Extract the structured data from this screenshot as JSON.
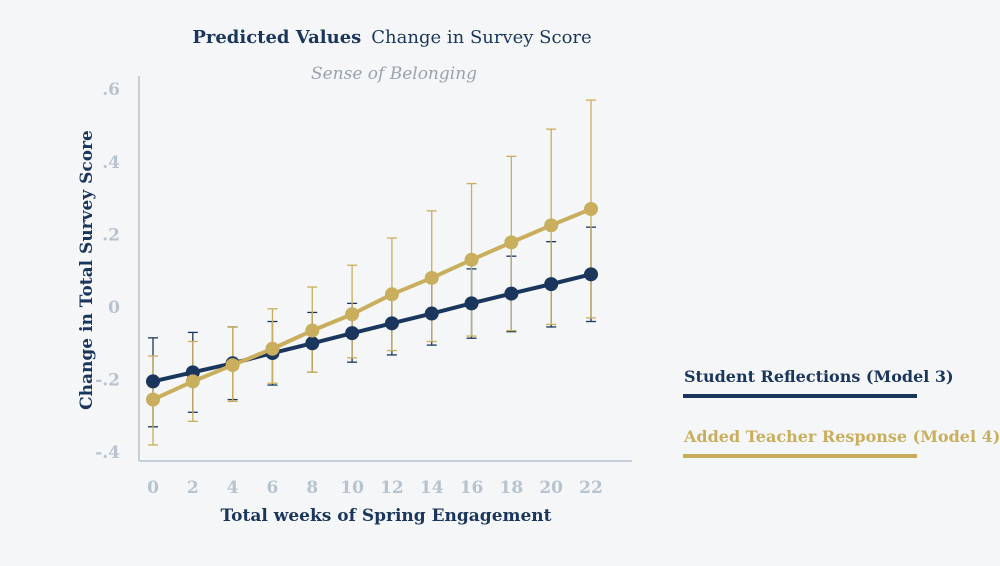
{
  "chart_data": {
    "type": "line",
    "title_bold": "Predicted Values",
    "title_regular": "Change in Survey Score",
    "subtitle": "Sense of Belonging",
    "xlabel": "Total weeks of Spring Engagement",
    "ylabel": "Change in Total Survey Score",
    "x": [
      0,
      2,
      4,
      6,
      8,
      10,
      12,
      14,
      16,
      18,
      20,
      22
    ],
    "x_tick_labels": [
      "0",
      "2",
      "4",
      "6",
      "8",
      "10",
      "12",
      "14",
      "16",
      "18",
      "20",
      "22"
    ],
    "y_ticks": [
      -0.4,
      -0.2,
      0,
      0.2,
      0.4,
      0.6
    ],
    "y_tick_labels": [
      "-.4",
      "-.2",
      "0",
      ".2",
      ".4",
      ".6"
    ],
    "ylim": [
      -0.43,
      0.64
    ],
    "series": [
      {
        "name": "Student Reflections (Model 3)",
        "color": "#1b365d",
        "values": [
          -0.205,
          -0.18,
          -0.155,
          -0.127,
          -0.1,
          -0.072,
          -0.045,
          -0.018,
          0.01,
          0.037,
          0.063,
          0.09
        ],
        "lower": [
          -0.33,
          -0.29,
          -0.255,
          -0.215,
          -0.18,
          -0.152,
          -0.132,
          -0.105,
          -0.086,
          -0.068,
          -0.055,
          -0.04
        ],
        "upper": [
          -0.085,
          -0.07,
          -0.055,
          -0.04,
          -0.015,
          0.01,
          0.04,
          0.07,
          0.105,
          0.14,
          0.18,
          0.22
        ]
      },
      {
        "name": "Added Teacher Response (Model 4)",
        "color": "#c9ae5d",
        "values": [
          -0.255,
          -0.205,
          -0.16,
          -0.115,
          -0.065,
          -0.02,
          0.035,
          0.08,
          0.13,
          0.178,
          0.225,
          0.27
        ],
        "lower": [
          -0.38,
          -0.315,
          -0.26,
          -0.21,
          -0.18,
          -0.14,
          -0.12,
          -0.095,
          -0.08,
          -0.065,
          -0.048,
          -0.03
        ],
        "upper": [
          -0.135,
          -0.095,
          -0.055,
          -0.005,
          0.055,
          0.115,
          0.19,
          0.265,
          0.34,
          0.415,
          0.49,
          0.57
        ]
      }
    ]
  }
}
